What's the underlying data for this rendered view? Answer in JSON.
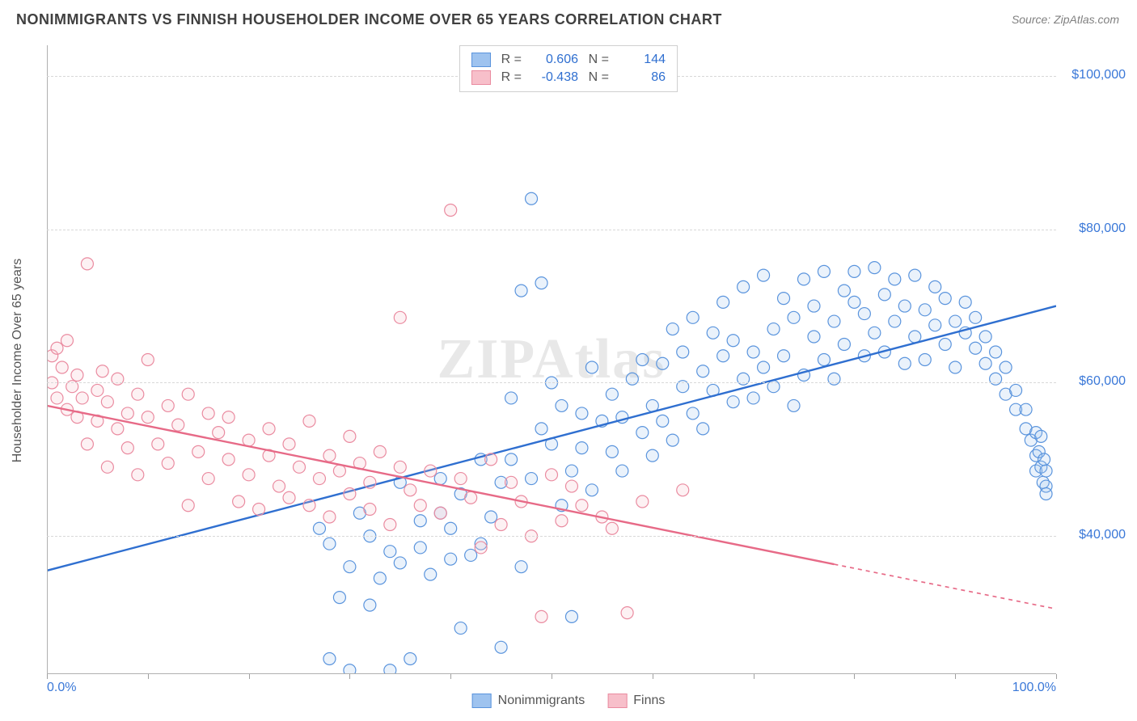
{
  "title": "NONIMMIGRANTS VS FINNISH HOUSEHOLDER INCOME OVER 65 YEARS CORRELATION CHART",
  "source_label": "Source: ",
  "source_name": "ZipAtlas.com",
  "watermark": "ZIPAtlas",
  "chart": {
    "type": "scatter",
    "background_color": "#ffffff",
    "grid_color": "#d8d8d8",
    "axis_color": "#b0b0b0",
    "tick_label_color": "#3a78d8",
    "axis_label_color": "#555555",
    "ylabel": "Householder Income Over 65 years",
    "xlim": [
      0,
      100
    ],
    "ylim": [
      22000,
      104000
    ],
    "x_ticks_pct": [
      0,
      10,
      20,
      30,
      40,
      50,
      60,
      70,
      80,
      90,
      100
    ],
    "x_tick_labels": {
      "left": "0.0%",
      "right": "100.0%"
    },
    "y_gridlines": [
      40000,
      60000,
      80000,
      100000
    ],
    "y_tick_labels": [
      "$40,000",
      "$60,000",
      "$80,000",
      "$100,000"
    ],
    "label_fontsize": 16,
    "title_fontsize": 18,
    "marker_radius": 7.5,
    "marker_stroke_width": 1.2,
    "marker_fill_opacity": 0.22,
    "trend_line_width": 2.4,
    "series": [
      {
        "name": "Nonimmigrants",
        "legend_label": "Nonimmigrants",
        "fill_color": "#9ec3ef",
        "stroke_color": "#5a94dd",
        "line_color": "#2f6fd0",
        "r": "0.606",
        "n": "144",
        "trend": {
          "x1": 0,
          "y1": 35500,
          "x2": 100,
          "y2": 70000,
          "solid_until_x": 100
        },
        "points": [
          [
            27,
            41000
          ],
          [
            28,
            39000
          ],
          [
            28,
            24000
          ],
          [
            29,
            32000
          ],
          [
            30,
            36000
          ],
          [
            30,
            22500
          ],
          [
            31,
            43000
          ],
          [
            32,
            31000
          ],
          [
            32,
            40000
          ],
          [
            33,
            34500
          ],
          [
            34,
            22500
          ],
          [
            34,
            38000
          ],
          [
            35,
            47000
          ],
          [
            35,
            36500
          ],
          [
            36,
            24000
          ],
          [
            37,
            38500
          ],
          [
            37,
            42000
          ],
          [
            38,
            35000
          ],
          [
            39,
            43000
          ],
          [
            39,
            47500
          ],
          [
            40,
            41000
          ],
          [
            40,
            37000
          ],
          [
            41,
            28000
          ],
          [
            41,
            45500
          ],
          [
            42,
            37500
          ],
          [
            43,
            39000
          ],
          [
            43,
            50000
          ],
          [
            44,
            42500
          ],
          [
            45,
            25500
          ],
          [
            45,
            47000
          ],
          [
            46,
            50000
          ],
          [
            46,
            58000
          ],
          [
            47,
            72000
          ],
          [
            47,
            36000
          ],
          [
            48,
            84000
          ],
          [
            48,
            47500
          ],
          [
            49,
            73000
          ],
          [
            49,
            54000
          ],
          [
            50,
            52000
          ],
          [
            50,
            60000
          ],
          [
            51,
            44000
          ],
          [
            51,
            57000
          ],
          [
            52,
            29500
          ],
          [
            52,
            48500
          ],
          [
            53,
            56000
          ],
          [
            53,
            51500
          ],
          [
            54,
            62000
          ],
          [
            54,
            46000
          ],
          [
            55,
            55000
          ],
          [
            56,
            51000
          ],
          [
            56,
            58500
          ],
          [
            57,
            48500
          ],
          [
            57,
            55500
          ],
          [
            58,
            60500
          ],
          [
            59,
            53500
          ],
          [
            59,
            63000
          ],
          [
            60,
            50500
          ],
          [
            60,
            57000
          ],
          [
            61,
            62500
          ],
          [
            61,
            55000
          ],
          [
            62,
            67000
          ],
          [
            62,
            52500
          ],
          [
            63,
            59500
          ],
          [
            63,
            64000
          ],
          [
            64,
            56000
          ],
          [
            64,
            68500
          ],
          [
            65,
            61500
          ],
          [
            65,
            54000
          ],
          [
            66,
            66500
          ],
          [
            66,
            59000
          ],
          [
            67,
            63500
          ],
          [
            67,
            70500
          ],
          [
            68,
            57500
          ],
          [
            68,
            65500
          ],
          [
            69,
            60500
          ],
          [
            69,
            72500
          ],
          [
            70,
            64000
          ],
          [
            70,
            58000
          ],
          [
            71,
            74000
          ],
          [
            71,
            62000
          ],
          [
            72,
            67000
          ],
          [
            72,
            59500
          ],
          [
            73,
            71000
          ],
          [
            73,
            63500
          ],
          [
            74,
            57000
          ],
          [
            74,
            68500
          ],
          [
            75,
            73500
          ],
          [
            75,
            61000
          ],
          [
            76,
            66000
          ],
          [
            76,
            70000
          ],
          [
            77,
            63000
          ],
          [
            77,
            74500
          ],
          [
            78,
            68000
          ],
          [
            78,
            60500
          ],
          [
            79,
            72000
          ],
          [
            79,
            65000
          ],
          [
            80,
            70500
          ],
          [
            80,
            74500
          ],
          [
            81,
            63500
          ],
          [
            81,
            69000
          ],
          [
            82,
            66500
          ],
          [
            82,
            75000
          ],
          [
            83,
            71500
          ],
          [
            83,
            64000
          ],
          [
            84,
            68000
          ],
          [
            84,
            73500
          ],
          [
            85,
            62500
          ],
          [
            85,
            70000
          ],
          [
            86,
            66000
          ],
          [
            86,
            74000
          ],
          [
            87,
            69500
          ],
          [
            87,
            63000
          ],
          [
            88,
            72500
          ],
          [
            88,
            67500
          ],
          [
            89,
            65000
          ],
          [
            89,
            71000
          ],
          [
            90,
            68000
          ],
          [
            90,
            62000
          ],
          [
            91,
            66500
          ],
          [
            91,
            70500
          ],
          [
            92,
            64500
          ],
          [
            92,
            68500
          ],
          [
            93,
            62500
          ],
          [
            93,
            66000
          ],
          [
            94,
            60500
          ],
          [
            94,
            64000
          ],
          [
            95,
            58500
          ],
          [
            95,
            62000
          ],
          [
            96,
            56500
          ],
          [
            96,
            59000
          ],
          [
            97,
            54000
          ],
          [
            97,
            56500
          ],
          [
            97.5,
            52500
          ],
          [
            98,
            50500
          ],
          [
            98,
            53500
          ],
          [
            98,
            48500
          ],
          [
            98.3,
            51000
          ],
          [
            98.5,
            49000
          ],
          [
            98.5,
            53000
          ],
          [
            98.7,
            47000
          ],
          [
            98.8,
            50000
          ],
          [
            99,
            46500
          ],
          [
            99,
            48500
          ],
          [
            99,
            45500
          ]
        ]
      },
      {
        "name": "Finns",
        "legend_label": "Finns",
        "fill_color": "#f7bfca",
        "stroke_color": "#ea8ba0",
        "line_color": "#e76a87",
        "r": "-0.438",
        "n": "86",
        "trend": {
          "x1": 0,
          "y1": 57000,
          "x2": 100,
          "y2": 30500,
          "solid_until_x": 78
        },
        "points": [
          [
            0.5,
            63500
          ],
          [
            0.5,
            60000
          ],
          [
            1,
            64500
          ],
          [
            1,
            58000
          ],
          [
            1.5,
            62000
          ],
          [
            2,
            65500
          ],
          [
            2,
            56500
          ],
          [
            2.5,
            59500
          ],
          [
            3,
            61000
          ],
          [
            3,
            55500
          ],
          [
            3.5,
            58000
          ],
          [
            4,
            75500
          ],
          [
            4,
            52000
          ],
          [
            5,
            59000
          ],
          [
            5,
            55000
          ],
          [
            5.5,
            61500
          ],
          [
            6,
            57500
          ],
          [
            6,
            49000
          ],
          [
            7,
            54000
          ],
          [
            7,
            60500
          ],
          [
            8,
            56000
          ],
          [
            8,
            51500
          ],
          [
            9,
            58500
          ],
          [
            9,
            48000
          ],
          [
            10,
            55500
          ],
          [
            10,
            63000
          ],
          [
            11,
            52000
          ],
          [
            12,
            57000
          ],
          [
            12,
            49500
          ],
          [
            13,
            54500
          ],
          [
            14,
            44000
          ],
          [
            14,
            58500
          ],
          [
            15,
            51000
          ],
          [
            16,
            56000
          ],
          [
            16,
            47500
          ],
          [
            17,
            53500
          ],
          [
            18,
            50000
          ],
          [
            18,
            55500
          ],
          [
            19,
            44500
          ],
          [
            20,
            52500
          ],
          [
            20,
            48000
          ],
          [
            21,
            43500
          ],
          [
            22,
            54000
          ],
          [
            22,
            50500
          ],
          [
            23,
            46500
          ],
          [
            24,
            45000
          ],
          [
            24,
            52000
          ],
          [
            25,
            49000
          ],
          [
            26,
            44000
          ],
          [
            26,
            55000
          ],
          [
            27,
            47500
          ],
          [
            28,
            50500
          ],
          [
            28,
            42500
          ],
          [
            29,
            48500
          ],
          [
            30,
            53000
          ],
          [
            30,
            45500
          ],
          [
            31,
            49500
          ],
          [
            32,
            47000
          ],
          [
            32,
            43500
          ],
          [
            33,
            51000
          ],
          [
            34,
            41500
          ],
          [
            35,
            49000
          ],
          [
            35,
            68500
          ],
          [
            36,
            46000
          ],
          [
            37,
            44000
          ],
          [
            38,
            48500
          ],
          [
            39,
            43000
          ],
          [
            40,
            82500
          ],
          [
            41,
            47500
          ],
          [
            42,
            45000
          ],
          [
            43,
            38500
          ],
          [
            44,
            50000
          ],
          [
            45,
            41500
          ],
          [
            46,
            47000
          ],
          [
            47,
            44500
          ],
          [
            48,
            40000
          ],
          [
            49,
            29500
          ],
          [
            50,
            48000
          ],
          [
            51,
            42000
          ],
          [
            52,
            46500
          ],
          [
            53,
            44000
          ],
          [
            55,
            42500
          ],
          [
            56,
            41000
          ],
          [
            57.5,
            30000
          ],
          [
            59,
            44500
          ],
          [
            63,
            46000
          ]
        ]
      }
    ],
    "legend_bottom": [
      {
        "label": "Nonimmigrants",
        "fill": "#9ec3ef",
        "stroke": "#5a94dd"
      },
      {
        "label": "Finns",
        "fill": "#f7bfca",
        "stroke": "#ea8ba0"
      }
    ]
  }
}
